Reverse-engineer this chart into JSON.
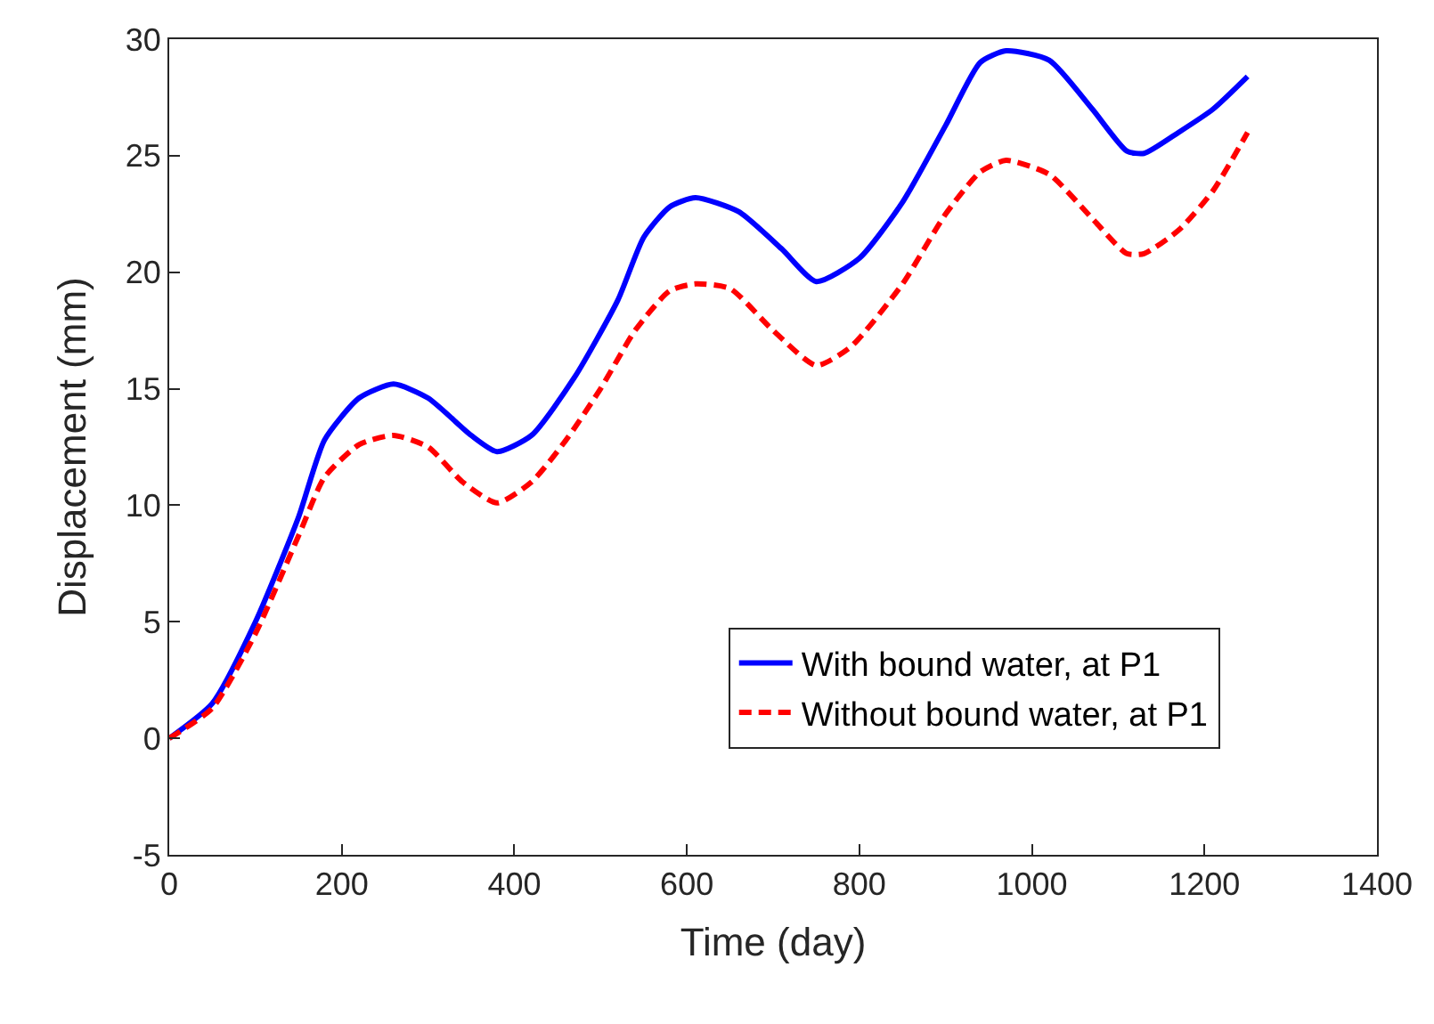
{
  "chart_data": {
    "type": "line",
    "xlabel": "Time (day)",
    "ylabel": "Displacement (mm)",
    "xlim": [
      0,
      1400
    ],
    "xticks": [
      0,
      200,
      400,
      600,
      800,
      1000,
      1200,
      1400
    ],
    "ylim": [
      -5,
      30
    ],
    "yticks": [
      -5,
      0,
      5,
      10,
      15,
      20,
      25,
      30
    ],
    "grid": false,
    "legend": "bottom right",
    "marker": "none",
    "series": [
      {
        "name": "With bound water, at P1",
        "color": "#0000ff",
        "line_style": "solid",
        "x": [
          0,
          50,
          100,
          150,
          180,
          220,
          260,
          300,
          350,
          380,
          420,
          470,
          520,
          550,
          580,
          610,
          660,
          710,
          750,
          800,
          850,
          900,
          940,
          970,
          1020,
          1070,
          1110,
          1130,
          1170,
          1210,
          1250
        ],
        "values": [
          0,
          1.5,
          5,
          9.5,
          12.8,
          14.6,
          15.2,
          14.6,
          13.0,
          12.3,
          13.0,
          15.5,
          18.8,
          21.5,
          22.8,
          23.2,
          22.6,
          21.0,
          19.6,
          20.6,
          23,
          26.3,
          29,
          29.5,
          29.1,
          27,
          25.2,
          25.1,
          26,
          27,
          28.4
        ]
      },
      {
        "name": "Without bound water, at P1",
        "color": "#ff0000",
        "line_style": "dashed",
        "x": [
          0,
          50,
          100,
          150,
          180,
          220,
          260,
          300,
          340,
          380,
          420,
          460,
          500,
          540,
          580,
          610,
          650,
          700,
          750,
          790,
          850,
          900,
          940,
          970,
          1020,
          1070,
          1110,
          1130,
          1170,
          1210,
          1250
        ],
        "values": [
          0,
          1.3,
          4.5,
          8.7,
          11.2,
          12.6,
          13.0,
          12.5,
          11.0,
          10.1,
          11,
          12.8,
          15,
          17.5,
          19.2,
          19.5,
          19.3,
          17.5,
          16,
          16.8,
          19.5,
          22.5,
          24.3,
          24.8,
          24.2,
          22.3,
          20.8,
          20.8,
          21.8,
          23.5,
          26
        ]
      }
    ]
  }
}
